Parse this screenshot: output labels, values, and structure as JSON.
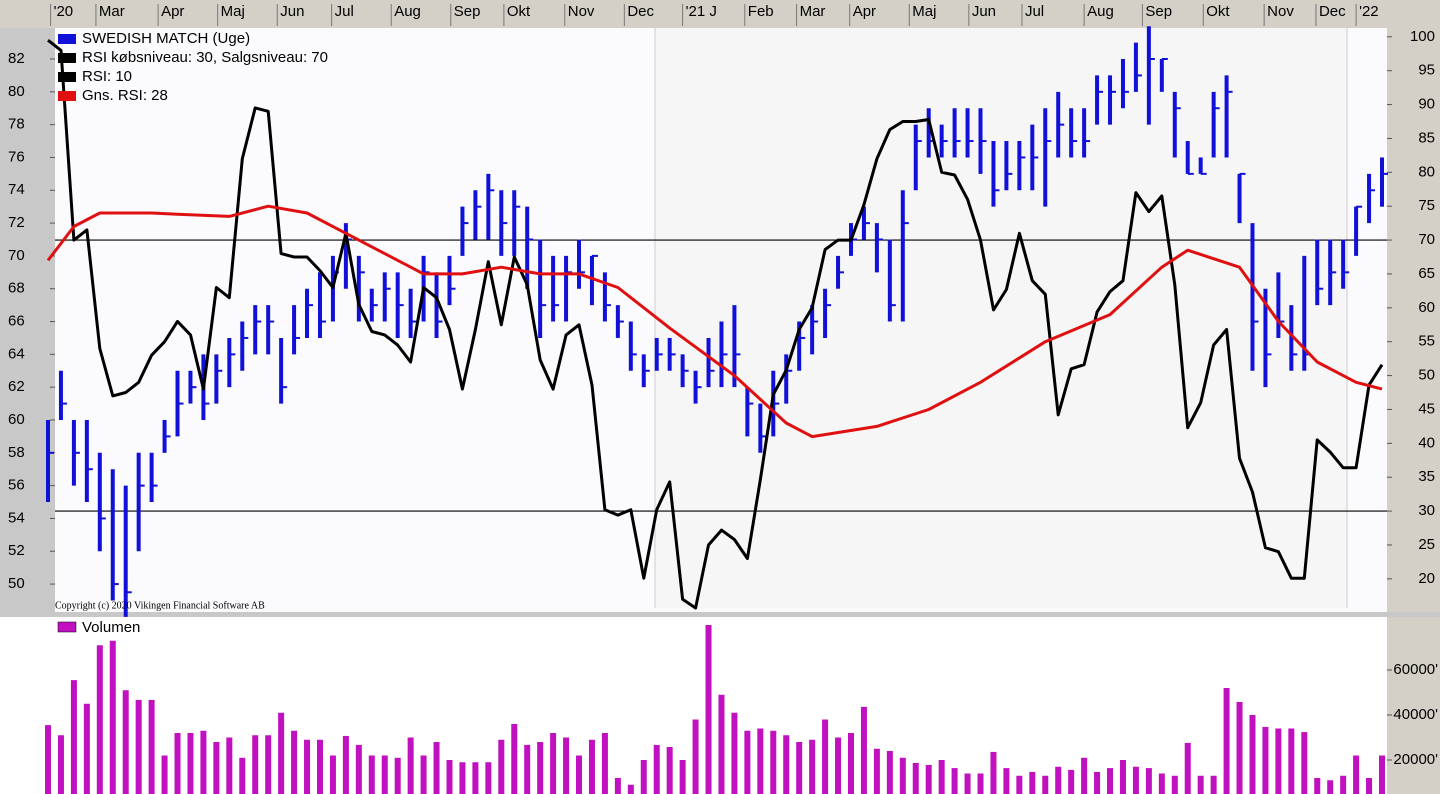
{
  "chart_data": [
    {
      "type": "ohlc",
      "xlim": [
        0,
        103
      ],
      "xticks": [
        {
          "value": 0.2,
          "label": "'20"
        },
        {
          "value": 3.7,
          "label": "Mar"
        },
        {
          "value": 8.5,
          "label": "Apr"
        },
        {
          "value": 13.1,
          "label": "Maj"
        },
        {
          "value": 17.7,
          "label": "Jun"
        },
        {
          "value": 21.9,
          "label": "Jul"
        },
        {
          "value": 26.5,
          "label": "Aug"
        },
        {
          "value": 31.1,
          "label": "Sep"
        },
        {
          "value": 35.2,
          "label": "Okt"
        },
        {
          "value": 39.9,
          "label": "Nov"
        },
        {
          "value": 44.5,
          "label": "Dec"
        },
        {
          "value": 49,
          "label": "'21 J"
        },
        {
          "value": 53.8,
          "label": "Feb"
        },
        {
          "value": 57.8,
          "label": "Mar"
        },
        {
          "value": 61.9,
          "label": "Apr"
        },
        {
          "value": 66.5,
          "label": "Maj"
        },
        {
          "value": 71.1,
          "label": "Jun"
        },
        {
          "value": 75.2,
          "label": "Jul"
        },
        {
          "value": 80,
          "label": "Aug"
        },
        {
          "value": 84.5,
          "label": "Sep"
        },
        {
          "value": 89.2,
          "label": "Okt"
        },
        {
          "value": 93.9,
          "label": "Nov"
        },
        {
          "value": 97.9,
          "label": "Dec"
        },
        {
          "value": 101,
          "label": "'22"
        }
      ],
      "ylim": [
        48.42,
        83.89
      ],
      "yticks": [
        50,
        52,
        54,
        56,
        58,
        60,
        62,
        64,
        66,
        68,
        70,
        72,
        74,
        76,
        78,
        80,
        82
      ],
      "y2lim": [
        15.4,
        101.3
      ],
      "y2ticks": [
        20,
        25,
        30,
        35,
        40,
        45,
        50,
        55,
        60,
        65,
        70,
        75,
        80,
        85,
        90,
        95,
        100
      ],
      "series": [
        {
          "name": "SWEDISH MATCH (Uge)",
          "color": "#1010d8",
          "high": [
            60,
            63,
            60,
            60,
            58,
            57,
            56,
            58,
            58,
            60,
            63,
            63,
            64,
            64,
            65,
            66,
            67,
            67,
            65,
            67,
            68,
            69,
            70,
            72,
            70,
            68,
            69,
            69,
            68,
            70,
            69,
            70,
            73,
            74,
            75,
            74,
            74,
            73,
            71,
            70,
            70,
            71,
            70,
            69,
            67,
            66,
            64,
            65,
            65,
            64,
            63,
            65,
            66,
            67,
            62,
            61,
            63,
            64,
            66,
            67,
            68,
            70,
            72,
            73,
            72,
            71,
            74,
            78,
            79,
            78,
            79,
            79,
            79,
            77,
            77,
            77,
            78,
            79,
            80,
            79,
            79,
            81,
            81,
            82,
            83,
            84,
            82,
            80,
            77,
            76,
            80,
            81,
            75,
            72,
            68,
            69,
            67,
            70,
            71,
            71,
            71,
            73,
            75,
            76
          ],
          "low": [
            55,
            60,
            56,
            55,
            52,
            49,
            48,
            52,
            55,
            58,
            59,
            61,
            60,
            61,
            62,
            63,
            64,
            64,
            61,
            64,
            65,
            65,
            66,
            68,
            66,
            66,
            66,
            65,
            65,
            66,
            65,
            67,
            70,
            71,
            71,
            70,
            70,
            68,
            65,
            66,
            66,
            68,
            67,
            66,
            65,
            63,
            62,
            63,
            63,
            62,
            61,
            62,
            62,
            62,
            59,
            58,
            59,
            61,
            63,
            64,
            65,
            68,
            70,
            71,
            69,
            66,
            66,
            74,
            76,
            76,
            76,
            76,
            75,
            73,
            74,
            74,
            74,
            73,
            76,
            76,
            76,
            78,
            78,
            79,
            80,
            78,
            80,
            76,
            75,
            75,
            76,
            76,
            72,
            63,
            62,
            65,
            63,
            63,
            67,
            67,
            68,
            70,
            72,
            73
          ],
          "close": [
            58,
            61,
            58,
            57,
            54,
            50,
            49.5,
            56,
            56,
            59,
            61,
            62,
            61,
            63,
            64,
            65,
            66,
            66,
            62,
            65,
            67,
            66,
            69,
            71,
            69,
            67,
            68,
            67,
            66,
            69,
            66,
            68,
            72,
            73,
            74,
            72,
            73,
            71,
            67,
            67,
            69,
            69,
            70,
            67,
            66,
            64,
            63,
            64,
            64,
            63,
            62,
            63,
            64,
            64,
            61,
            59,
            61,
            63,
            65,
            66,
            67,
            69,
            71,
            72,
            71,
            67,
            72,
            77,
            77,
            77,
            77,
            77,
            77,
            74,
            75,
            76,
            76,
            77,
            78,
            77,
            77,
            80,
            80,
            80,
            81,
            82,
            82,
            79,
            75,
            75,
            79,
            80,
            75,
            66,
            64,
            66,
            64,
            64,
            68,
            69,
            69,
            73,
            74,
            75
          ]
        },
        {
          "name": "RSI: 10",
          "color": "#000000",
          "axis": "y2",
          "values": [
            99.5,
            98,
            70,
            71.5,
            54,
            47,
            47.5,
            49,
            53,
            55,
            58,
            56,
            48,
            63,
            61.5,
            82,
            89.5,
            89,
            68,
            67.5,
            67.5,
            65.5,
            63,
            71,
            60.5,
            56.5,
            56,
            54.5,
            52,
            63,
            61.5,
            56.8,
            48,
            56.8,
            66.8,
            57.5,
            67.5,
            63.4,
            52.3,
            48,
            56,
            57.5,
            48.6,
            30.2,
            29.4,
            30.2,
            20.1,
            30.2,
            34.3,
            17,
            15.7,
            25,
            27.2,
            25.8,
            23,
            34.6,
            47.2,
            50.8,
            56.8,
            60,
            68.6,
            70,
            70,
            75.2,
            82,
            86.3,
            87.5,
            87.5,
            87.8,
            80,
            79.6,
            76,
            70,
            59.7,
            62.7,
            71,
            64,
            62,
            44.2,
            51,
            51.6,
            59.4,
            62.4,
            64,
            77,
            74.2,
            76.5,
            63.4,
            42.3,
            46,
            54.5,
            56.8,
            37.8,
            32.8,
            24.6,
            24,
            20.1,
            20.1,
            40.5,
            38.7,
            36.4,
            36.4,
            48.6,
            51.6
          ]
        },
        {
          "name": "Gns. RSI: 28",
          "color": "#e01010",
          "axis": "y2",
          "x": [
            0,
            2,
            4,
            8,
            10,
            14,
            17,
            20,
            23,
            26,
            29,
            32,
            35,
            38,
            41,
            44,
            48,
            53,
            57,
            59,
            64,
            68,
            72,
            77,
            82,
            86,
            88,
            92,
            95,
            98,
            101,
            103
          ],
          "values": [
            67,
            72,
            74,
            74,
            73.8,
            73.5,
            75,
            74,
            71,
            68,
            65,
            65,
            66,
            65,
            65,
            63,
            57,
            50,
            43,
            41,
            42.5,
            45,
            49,
            55,
            59,
            66,
            68.5,
            66,
            58,
            52,
            49,
            48
          ]
        }
      ],
      "levels": {
        "label": "RSI købsniveau: 30, Salgsniveau: 70",
        "color": "#000000",
        "values": [
          30,
          70
        ]
      },
      "annotation": "Copyright (c) 2020 Vikingen Financial Software AB"
    },
    {
      "type": "bar",
      "xlim": [
        0,
        103
      ],
      "ylim": [
        4890,
        83560
      ],
      "yticks": [
        {
          "value": 20000,
          "label": "20000'"
        },
        {
          "value": 40000,
          "label": "40000'"
        },
        {
          "value": 60000,
          "label": "60000'"
        }
      ],
      "series": [
        {
          "name": "Volumen",
          "color": "#c010c0",
          "values": [
            35500,
            31000,
            55500,
            45000,
            71000,
            73000,
            51000,
            46700,
            46700,
            22000,
            32000,
            32000,
            33000,
            28000,
            30000,
            21000,
            31000,
            31000,
            41000,
            33000,
            29000,
            29000,
            22000,
            30700,
            26700,
            22000,
            22000,
            21000,
            30000,
            22000,
            28000,
            20000,
            19000,
            19000,
            19000,
            29000,
            36000,
            26700,
            28000,
            32000,
            30000,
            22000,
            29000,
            32000,
            12000,
            9000,
            20000,
            26700,
            25800,
            20000,
            38000,
            80000,
            49000,
            41000,
            33000,
            34000,
            33000,
            31000,
            28000,
            29000,
            38000,
            30000,
            32000,
            43600,
            25000,
            24000,
            21000,
            18700,
            17800,
            20000,
            16400,
            14000,
            14000,
            23600,
            16400,
            13000,
            14700,
            13000,
            17000,
            15600,
            21000,
            14700,
            16400,
            20000,
            17000,
            16400,
            14000,
            13000,
            27600,
            13000,
            13000,
            52000,
            45800,
            40000,
            34700,
            34000,
            34000,
            32400,
            12000,
            11000,
            13000,
            22000,
            12000,
            22000
          ]
        }
      ]
    }
  ]
}
